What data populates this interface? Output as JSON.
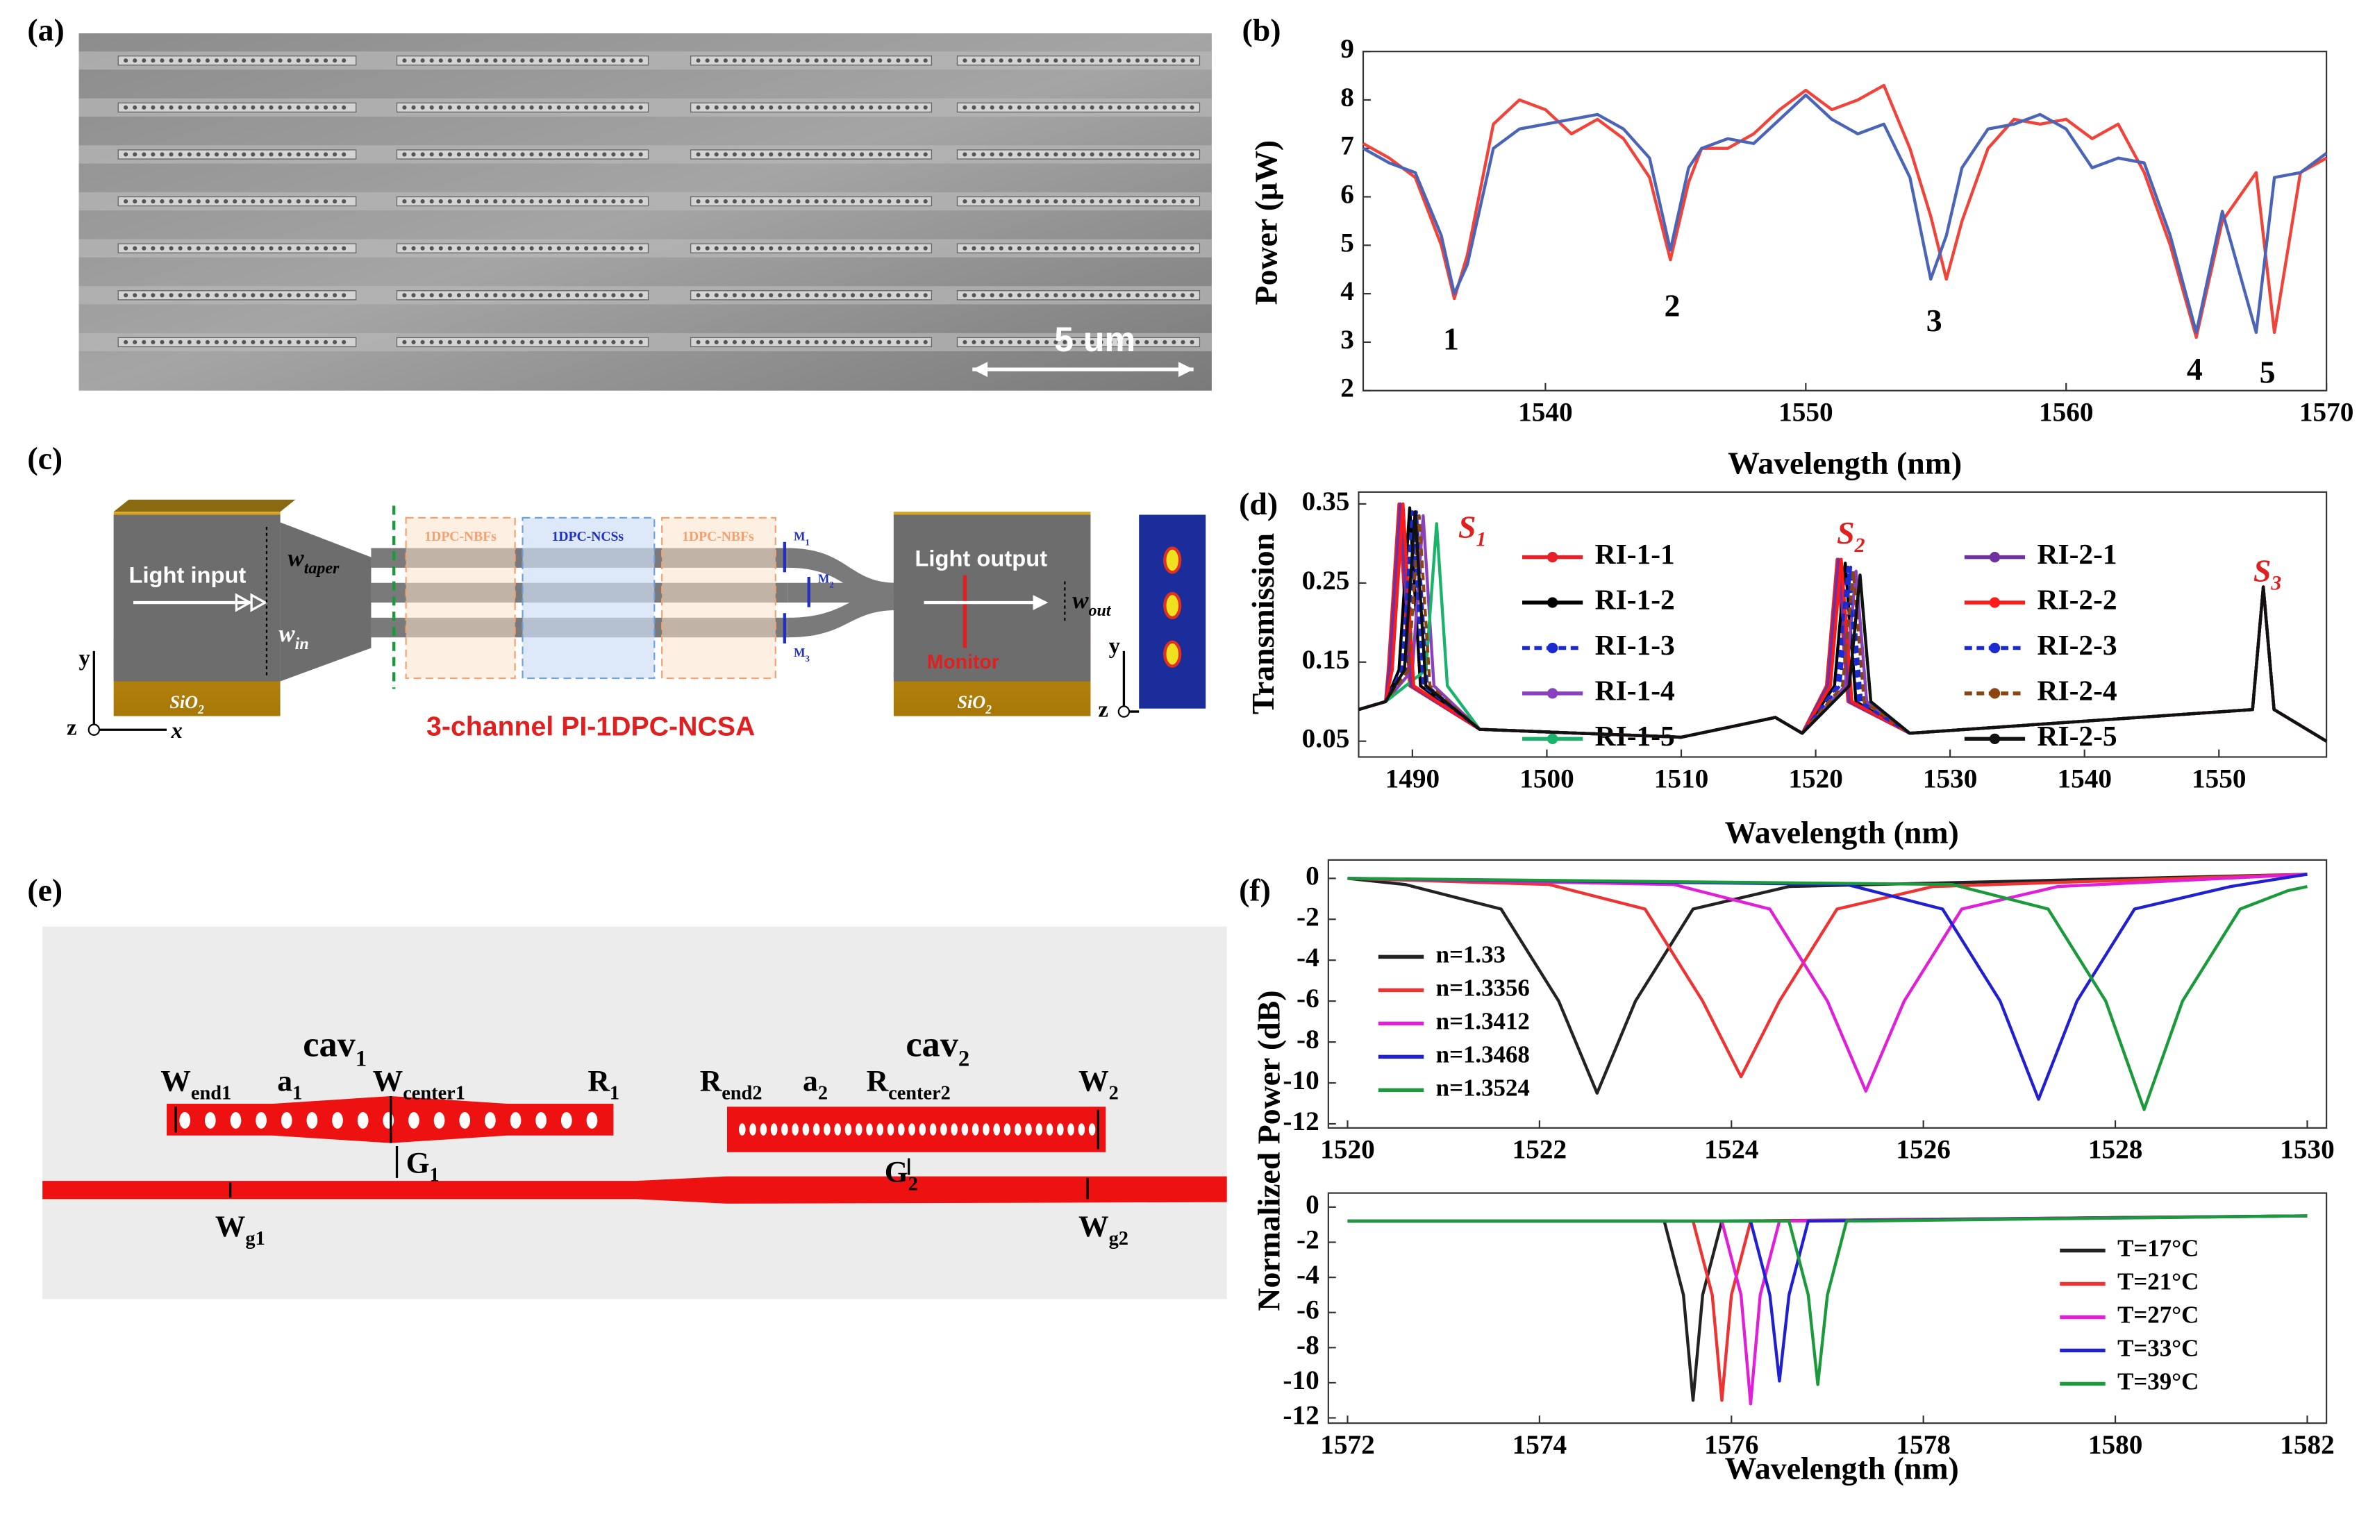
{
  "panels": [
    "(a)",
    "(b)",
    "(c)",
    "(d)",
    "(e)",
    "(f)"
  ],
  "a": {
    "scale_bar": "5 um"
  },
  "c": {
    "light_input": "Light input",
    "light_output": "Light output",
    "monitor": "Monitor",
    "substrates": [
      {
        "text": "SiO",
        "sub": "2"
      },
      {
        "text": "SiO",
        "sub": "2"
      }
    ],
    "w_taper": {
      "text": "w",
      "sub": "taper"
    },
    "w_in": {
      "text": "w",
      "sub": "in"
    },
    "w_out": {
      "text": "w",
      "sub": "out"
    },
    "sections": [
      "1DPC-NBFs",
      "1DPC-NCSs",
      "1DPC-NBFs"
    ],
    "monitors": [
      {
        "text": "M",
        "sub": "1"
      },
      {
        "text": "M",
        "sub": "2"
      },
      {
        "text": "M",
        "sub": "3"
      }
    ],
    "caption": "3-channel PI-1DPC-NCSA",
    "axes_left": [
      "y",
      "z",
      "x"
    ],
    "axes_inset": [
      "y",
      "z"
    ]
  },
  "e": {
    "cavities": [
      {
        "text": "cav",
        "sub": "1"
      },
      {
        "text": "cav",
        "sub": "2"
      }
    ],
    "labels": [
      {
        "text": "W",
        "sub": "end1"
      },
      {
        "text": "a",
        "sub": "1"
      },
      {
        "text": "W",
        "sub": "center1"
      },
      {
        "text": "R",
        "sub": "1"
      },
      {
        "text": "R",
        "sub": "end2"
      },
      {
        "text": "a",
        "sub": "2"
      },
      {
        "text": "R",
        "sub": "center2"
      },
      {
        "text": "W",
        "sub": "2"
      },
      {
        "text": "G",
        "sub": "1"
      },
      {
        "text": "G",
        "sub": "2"
      },
      {
        "text": "W",
        "sub": "g1"
      },
      {
        "text": "W",
        "sub": "g2"
      }
    ]
  },
  "chart_data": [
    {
      "type": "line",
      "ylabel": "Power (μW)",
      "xlabel": "Wavelength (nm)",
      "xlim": [
        1533,
        1570
      ],
      "ylim": [
        2,
        9
      ],
      "xticks": [
        1540,
        1550,
        1560,
        1570
      ],
      "yticks": [
        2,
        3,
        4,
        5,
        6,
        7,
        8,
        9
      ],
      "annotations": [
        "1",
        "2",
        "3",
        "4",
        "5"
      ],
      "x": [
        1533,
        1534,
        1535,
        1536,
        1536.5,
        1537,
        1538,
        1539,
        1540,
        1541,
        1542,
        1543,
        1544,
        1544.8,
        1545.5,
        1546,
        1547,
        1548,
        1549,
        1550,
        1551,
        1552,
        1553,
        1554,
        1554.8,
        1555.4,
        1556,
        1557,
        1558,
        1559,
        1560,
        1561,
        1562,
        1563,
        1564,
        1565,
        1566,
        1567.3,
        1568,
        1569,
        1570
      ],
      "series": [
        {
          "color": "#f0433a",
          "values": [
            7.1,
            6.8,
            6.4,
            5.0,
            3.9,
            4.8,
            7.5,
            8.0,
            7.8,
            7.3,
            7.6,
            7.2,
            6.4,
            4.7,
            6.3,
            7.0,
            7.0,
            7.3,
            7.8,
            8.2,
            7.8,
            8.0,
            8.3,
            7.0,
            5.6,
            4.3,
            5.5,
            7.0,
            7.6,
            7.5,
            7.6,
            7.2,
            7.5,
            6.5,
            5.0,
            3.1,
            5.5,
            6.5,
            3.2,
            6.5,
            6.8
          ]
        },
        {
          "color": "#4a64b8",
          "values": [
            7.0,
            6.7,
            6.5,
            5.2,
            4.0,
            4.6,
            7.0,
            7.4,
            7.5,
            7.6,
            7.7,
            7.4,
            6.8,
            4.9,
            6.6,
            7.0,
            7.2,
            7.1,
            7.6,
            8.1,
            7.6,
            7.3,
            7.5,
            6.4,
            4.3,
            5.2,
            6.6,
            7.4,
            7.5,
            7.7,
            7.4,
            6.6,
            6.8,
            6.7,
            5.2,
            3.2,
            5.7,
            3.2,
            6.4,
            6.5,
            6.9
          ]
        }
      ]
    },
    {
      "type": "line",
      "ylabel": "Transmission",
      "xlabel": "Wavelength (nm)",
      "xlim": [
        1486,
        1558
      ],
      "ylim": [
        0.03,
        0.365
      ],
      "xticks": [
        1490,
        1500,
        1510,
        1520,
        1530,
        1540,
        1550
      ],
      "yticks": [
        0.05,
        0.15,
        0.25,
        0.35
      ],
      "annotations": [
        {
          "text": "S",
          "sub": "1"
        },
        {
          "text": "S",
          "sub": "2"
        },
        {
          "text": "S",
          "sub": "3"
        }
      ],
      "series": [
        {
          "name": "RI-1-1",
          "color": "#e8202a",
          "x": [
            1486,
            1488,
            1488.2,
            1489,
            1489.8,
            1495,
            1510,
            1517,
            1519,
            1520.8,
            1521.6,
            1522.4,
            1527,
            1552.5,
            1553.3,
            1554.1,
            1558
          ],
          "values": [
            0.09,
            0.1,
            0.14,
            0.35,
            0.12,
            0.065,
            0.055,
            0.08,
            0.06,
            0.12,
            0.28,
            0.1,
            0.06,
            0.09,
            0.245,
            0.09,
            0.05
          ]
        },
        {
          "name": "RI-1-2",
          "color": "#000000",
          "x": [
            1486,
            1488,
            1489,
            1489.8,
            1490.6,
            1495,
            1510,
            1517,
            1519,
            1521.4,
            1522.2,
            1523,
            1527,
            1552.5,
            1553.3,
            1554.1,
            1558
          ],
          "values": [
            0.09,
            0.1,
            0.14,
            0.345,
            0.12,
            0.065,
            0.055,
            0.08,
            0.06,
            0.12,
            0.275,
            0.1,
            0.06,
            0.09,
            0.245,
            0.09,
            0.05
          ]
        },
        {
          "name": "RI-1-3",
          "color": "#1a2ad0",
          "dash": true,
          "x": [
            1486,
            1488,
            1489.5,
            1490.3,
            1491.1,
            1495,
            1510,
            1517,
            1519,
            1521.8,
            1522.6,
            1523.4,
            1527,
            1552.5,
            1553.3,
            1554.1,
            1558
          ],
          "values": [
            0.09,
            0.1,
            0.14,
            0.34,
            0.12,
            0.065,
            0.055,
            0.08,
            0.06,
            0.12,
            0.27,
            0.1,
            0.06,
            0.09,
            0.245,
            0.09,
            0.05
          ]
        },
        {
          "name": "RI-1-4",
          "color": "#8a3fbf",
          "x": [
            1486,
            1488,
            1490,
            1490.8,
            1491.6,
            1495,
            1510,
            1517,
            1519,
            1522.2,
            1523,
            1523.8,
            1527,
            1552.5,
            1553.3,
            1554.1,
            1558
          ],
          "values": [
            0.09,
            0.1,
            0.14,
            0.335,
            0.12,
            0.065,
            0.055,
            0.08,
            0.06,
            0.12,
            0.265,
            0.1,
            0.06,
            0.09,
            0.245,
            0.09,
            0.05
          ]
        },
        {
          "name": "RI-1-5",
          "color": "#19b36b",
          "x": [
            1486,
            1488,
            1491,
            1491.8,
            1492.6,
            1495,
            1510,
            1517,
            1519,
            1522.5,
            1523.3,
            1524.1,
            1527,
            1552.5,
            1553.3,
            1554.1,
            1558
          ],
          "values": [
            0.09,
            0.1,
            0.14,
            0.325,
            0.12,
            0.065,
            0.055,
            0.08,
            0.06,
            0.12,
            0.26,
            0.1,
            0.06,
            0.09,
            0.245,
            0.09,
            0.05
          ]
        },
        {
          "name": "RI-2-1",
          "color": "#7030a0",
          "x": [
            1486,
            1488,
            1488.3,
            1489.1,
            1489.9,
            1495,
            1510,
            1517,
            1519,
            1520.9,
            1521.7,
            1522.5,
            1527,
            1552.5,
            1553.3,
            1554.1,
            1558
          ],
          "values": [
            0.09,
            0.1,
            0.14,
            0.35,
            0.12,
            0.065,
            0.055,
            0.08,
            0.06,
            0.12,
            0.28,
            0.1,
            0.06,
            0.09,
            0.245,
            0.09,
            0.05
          ]
        },
        {
          "name": "RI-2-2",
          "color": "#ff1a1a",
          "x": [
            1486,
            1488,
            1488.5,
            1489.3,
            1490.1,
            1495,
            1510,
            1517,
            1519,
            1521.1,
            1521.9,
            1522.7,
            1527,
            1552.5,
            1553.3,
            1554.1,
            1558
          ],
          "values": [
            0.09,
            0.1,
            0.14,
            0.35,
            0.12,
            0.065,
            0.055,
            0.08,
            0.06,
            0.12,
            0.28,
            0.1,
            0.06,
            0.09,
            0.245,
            0.09,
            0.05
          ]
        },
        {
          "name": "RI-2-3",
          "color": "#1a2ad0",
          "dash": true,
          "x": [
            1486,
            1488,
            1489.2,
            1490,
            1490.8,
            1495,
            1510,
            1517,
            1519,
            1521.6,
            1522.4,
            1523.2,
            1527,
            1552.5,
            1553.3,
            1554.1,
            1558
          ],
          "values": [
            0.09,
            0.1,
            0.14,
            0.34,
            0.12,
            0.065,
            0.055,
            0.08,
            0.06,
            0.12,
            0.27,
            0.1,
            0.06,
            0.09,
            0.245,
            0.09,
            0.05
          ]
        },
        {
          "name": "RI-2-4",
          "color": "#8b4513",
          "dash": true,
          "x": [
            1486,
            1488,
            1489.7,
            1490.5,
            1491.3,
            1495,
            1510,
            1517,
            1519,
            1522,
            1522.8,
            1523.6,
            1527,
            1552.5,
            1553.3,
            1554.1,
            1558
          ],
          "values": [
            0.09,
            0.1,
            0.14,
            0.335,
            0.12,
            0.065,
            0.055,
            0.08,
            0.06,
            0.12,
            0.265,
            0.1,
            0.06,
            0.09,
            0.245,
            0.09,
            0.05
          ]
        },
        {
          "name": "RI-2-5",
          "color": "#111111",
          "x": [
            1486,
            1488,
            1489.4,
            1490.2,
            1491,
            1495,
            1510,
            1517,
            1519,
            1522.5,
            1523.3,
            1524.1,
            1527,
            1552.5,
            1553.3,
            1554.1,
            1558
          ],
          "values": [
            0.09,
            0.1,
            0.14,
            0.34,
            0.12,
            0.065,
            0.055,
            0.08,
            0.06,
            0.12,
            0.26,
            0.1,
            0.06,
            0.09,
            0.245,
            0.09,
            0.05
          ]
        }
      ]
    },
    {
      "type": "line",
      "ylabel": "Normalized Power (dB)",
      "xlim": [
        1519.8,
        1530.2
      ],
      "ylim": [
        -12.2,
        0.9
      ],
      "xticks": [
        1520,
        1522,
        1524,
        1526,
        1528,
        1530
      ],
      "yticks": [
        0,
        -2,
        -4,
        -6,
        -8,
        -10,
        -12
      ],
      "series": [
        {
          "name": "n=1.33",
          "color": "#222222",
          "x": [
            1520,
            1520.6,
            1521.6,
            1522.2,
            1522.6,
            1523,
            1523.6,
            1524.6,
            1530
          ],
          "values": [
            0,
            -0.3,
            -1.5,
            -6,
            -10.5,
            -6,
            -1.5,
            -0.4,
            0.2
          ]
        },
        {
          "name": "n=1.3356",
          "color": "#ee3333",
          "x": [
            1520,
            1522.1,
            1523.1,
            1523.7,
            1524.1,
            1524.5,
            1525.1,
            1526.1,
            1530
          ],
          "values": [
            0,
            -0.3,
            -1.5,
            -6,
            -9.7,
            -6,
            -1.5,
            -0.4,
            0.2
          ]
        },
        {
          "name": "n=1.3412",
          "color": "#e020d8",
          "x": [
            1520,
            1523.4,
            1524.4,
            1525,
            1525.4,
            1525.8,
            1526.4,
            1527.4,
            1530
          ],
          "values": [
            0,
            -0.3,
            -1.5,
            -6,
            -10.4,
            -6,
            -1.5,
            -0.4,
            0.2
          ]
        },
        {
          "name": "n=1.3468",
          "color": "#2020d0",
          "x": [
            1520,
            1525.2,
            1526.2,
            1526.8,
            1527.2,
            1527.6,
            1528.2,
            1529.2,
            1530
          ],
          "values": [
            0,
            -0.3,
            -1.5,
            -6,
            -10.8,
            -6,
            -1.5,
            -0.4,
            0.2
          ]
        },
        {
          "name": "n=1.3524",
          "color": "#1a9a3a",
          "x": [
            1520,
            1526.3,
            1527.3,
            1527.9,
            1528.3,
            1528.7,
            1529.3,
            1529.8,
            1530
          ],
          "values": [
            0,
            -0.3,
            -1.5,
            -6,
            -11.3,
            -6,
            -1.5,
            -0.6,
            -0.4
          ]
        }
      ]
    },
    {
      "type": "line",
      "xlabel": "Wavelength (nm)",
      "xlim": [
        1571.8,
        1582.2
      ],
      "ylim": [
        -12.3,
        0.8
      ],
      "xticks": [
        1572,
        1574,
        1576,
        1578,
        1580,
        1582
      ],
      "yticks": [
        0,
        -2,
        -4,
        -6,
        -8,
        -10,
        -12
      ],
      "series": [
        {
          "name": "T=17°C",
          "color": "#222222",
          "x": [
            1572,
            1575.3,
            1575.5,
            1575.6,
            1575.7,
            1575.9,
            1582
          ],
          "values": [
            -0.8,
            -0.8,
            -5,
            -11,
            -5,
            -0.8,
            -0.5
          ]
        },
        {
          "name": "T=21°C",
          "color": "#ee3333",
          "x": [
            1572,
            1575.6,
            1575.8,
            1575.9,
            1576,
            1576.2,
            1582
          ],
          "values": [
            -0.8,
            -0.8,
            -5,
            -11,
            -5,
            -0.8,
            -0.5
          ]
        },
        {
          "name": "T=27°C",
          "color": "#e020d8",
          "x": [
            1572,
            1575.9,
            1576.1,
            1576.2,
            1576.3,
            1576.5,
            1582
          ],
          "values": [
            -0.8,
            -0.8,
            -5,
            -11.2,
            -5,
            -0.8,
            -0.5
          ]
        },
        {
          "name": "T=33°C",
          "color": "#2020d0",
          "x": [
            1572,
            1576.2,
            1576.4,
            1576.5,
            1576.6,
            1576.8,
            1582
          ],
          "values": [
            -0.8,
            -0.8,
            -5,
            -9.9,
            -5,
            -0.8,
            -0.5
          ]
        },
        {
          "name": "T=39°C",
          "color": "#1a9a3a",
          "x": [
            1572,
            1576.6,
            1576.8,
            1576.9,
            1577,
            1577.2,
            1582
          ],
          "values": [
            -0.8,
            -0.8,
            -5,
            -10.1,
            -5,
            -0.8,
            -0.5
          ]
        }
      ]
    }
  ]
}
